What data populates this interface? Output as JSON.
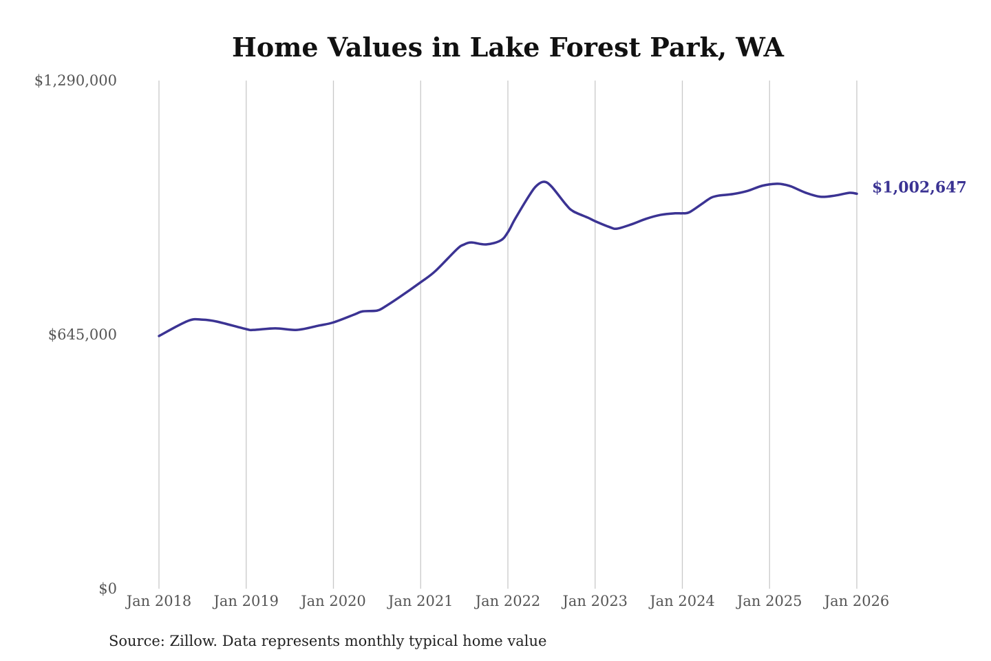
{
  "chart_data": {
    "type": "line",
    "title": "Home Values in Lake Forest Park, WA",
    "source": "Source: Zillow. Data represents monthly typical home value",
    "ylim": [
      0,
      1290000
    ],
    "y_ticks": [
      {
        "value": 0,
        "label": "$0"
      },
      {
        "value": 645000,
        "label": "$645,000"
      },
      {
        "value": 1290000,
        "label": "$1,290,000"
      }
    ],
    "x_ticks": [
      {
        "value": "2018-01",
        "label": "Jan 2018"
      },
      {
        "value": "2019-01",
        "label": "Jan 2019"
      },
      {
        "value": "2020-01",
        "label": "Jan 2020"
      },
      {
        "value": "2021-01",
        "label": "Jan 2021"
      },
      {
        "value": "2022-01",
        "label": "Jan 2022"
      },
      {
        "value": "2023-01",
        "label": "Jan 2023"
      },
      {
        "value": "2024-01",
        "label": "Jan 2024"
      },
      {
        "value": "2025-01",
        "label": "Jan 2025"
      },
      {
        "value": "2026-01",
        "label": "Jan 2026"
      }
    ],
    "grid": "vertical",
    "line_color": "#3b3393",
    "end_label": "$1,002,647",
    "x": [
      "2018-01",
      "2018-05",
      "2018-07",
      "2018-09",
      "2019-01",
      "2019-02",
      "2019-05",
      "2019-08",
      "2019-11",
      "2020-01",
      "2020-04",
      "2020-05",
      "2020-07",
      "2020-08",
      "2020-10",
      "2021-01",
      "2021-03",
      "2021-06",
      "2021-07",
      "2021-08",
      "2021-10",
      "2021-12",
      "2022-01",
      "2022-02",
      "2022-04",
      "2022-05",
      "2022-06",
      "2022-07",
      "2022-09",
      "2022-10",
      "2022-12",
      "2023-01",
      "2023-03",
      "2023-04",
      "2023-06",
      "2023-08",
      "2023-10",
      "2023-12",
      "2024-01",
      "2024-02",
      "2024-04",
      "2024-05",
      "2024-06",
      "2024-08",
      "2024-10",
      "2024-12",
      "2025-02",
      "2025-03",
      "2025-04",
      "2025-06",
      "2025-08",
      "2025-10",
      "2025-12",
      "2026-01"
    ],
    "values": [
      641500,
      680000,
      683000,
      678000,
      659000,
      657000,
      661000,
      657000,
      668000,
      676000,
      697000,
      704000,
      706000,
      715000,
      739000,
      778000,
      806000,
      862000,
      874000,
      879000,
      874000,
      884000,
      905000,
      939000,
      1000000,
      1024000,
      1033000,
      1021000,
      975000,
      958000,
      942000,
      933000,
      918000,
      914000,
      925000,
      939000,
      949000,
      953000,
      953000,
      956000,
      981000,
      993000,
      998000,
      1002000,
      1010000,
      1023000,
      1028000,
      1026000,
      1021000,
      1005000,
      995000,
      998000,
      1005000,
      1002647
    ]
  }
}
